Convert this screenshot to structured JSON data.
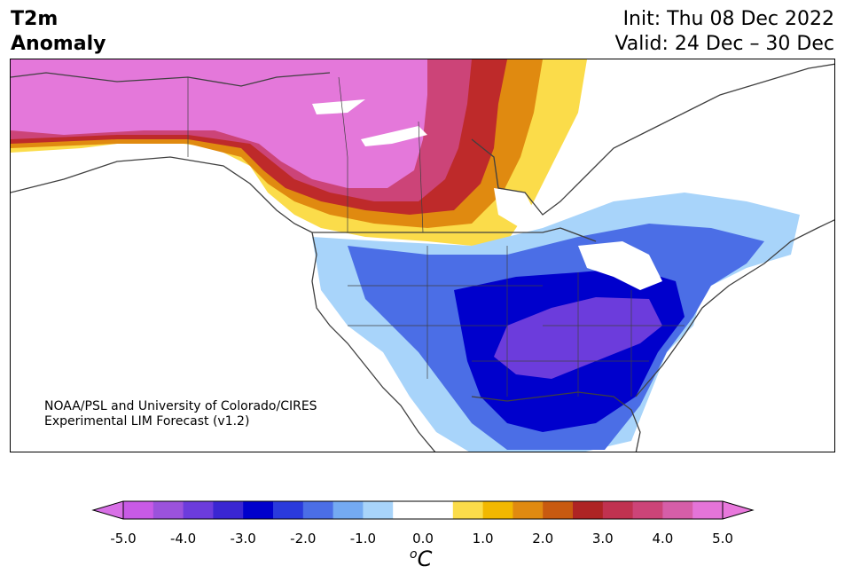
{
  "title": {
    "line1": "T2m",
    "line2": "Anomaly"
  },
  "dates": {
    "init": "Init: Thu 08 Dec 2022",
    "valid": "Valid: 24 Dec – 30 Dec"
  },
  "credit": {
    "line1": "NOAA/PSL and University of Colorado/CIRES",
    "line2": "Experimental LIM Forecast (v1.2)"
  },
  "colorbar": {
    "unit_symbol": "C",
    "unit_superscript": "o",
    "ticks": [
      "-5.0",
      "-4.0",
      "-3.0",
      "-2.0",
      "-1.0",
      "0.0",
      "1.0",
      "2.0",
      "3.0",
      "4.0",
      "5.0"
    ],
    "colors": [
      "#c85ae6",
      "#9b52dc",
      "#6c3cdc",
      "#3a26d2",
      "#0000cc",
      "#2a3adc",
      "#4b6ee6",
      "#74aaf2",
      "#a8d4fa",
      "#ffffff",
      "#ffffff",
      "#fbdc4a",
      "#f2b800",
      "#e08a10",
      "#c85a10",
      "#ae2424",
      "#c03250",
      "#cc4478",
      "#d65ea8",
      "#e474d8"
    ],
    "extend_low_color": "#d870e6",
    "extend_high_color": "#e878dc"
  },
  "colors": {
    "pink_warm": "#e478da",
    "red_warm": "#be2a2a",
    "orange_warm": "#e08a10",
    "yellow_warm": "#fbdc4a",
    "light_blue": "#a8d4fa",
    "mid_blue": "#4b6ee6",
    "deep_blue": "#0000cc",
    "purple_cold": "#6c3cdc",
    "coast_line": "#404040"
  }
}
